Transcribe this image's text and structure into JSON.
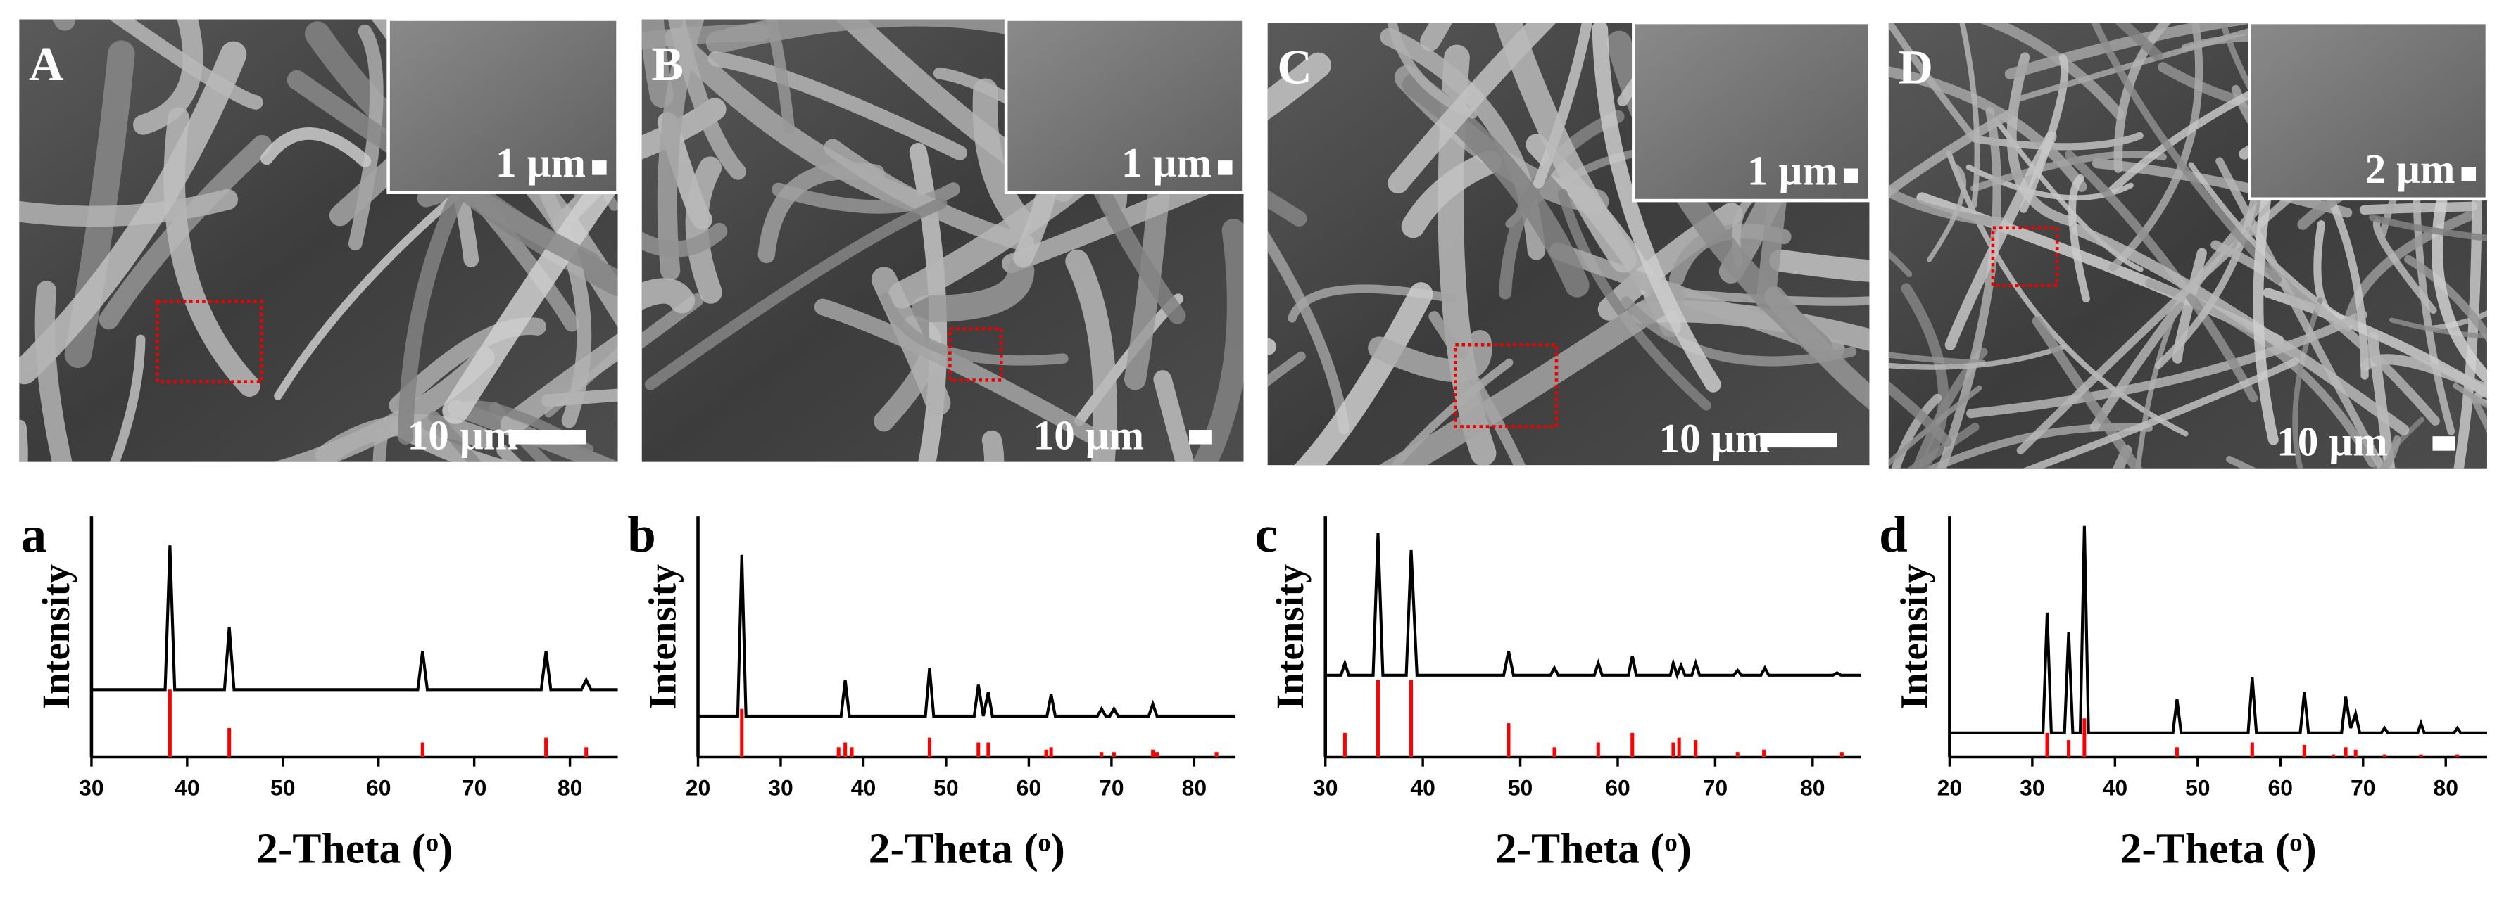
{
  "images": [
    {
      "label": "A",
      "scale": "10 µm",
      "inset_scale": "1 µm"
    },
    {
      "label": "B",
      "scale": "10 µm",
      "inset_scale": "1 µm"
    },
    {
      "label": "C",
      "scale": "10 µm",
      "inset_scale": "1 µm"
    },
    {
      "label": "D",
      "scale": "10 µm",
      "inset_scale": "2 µm"
    }
  ],
  "chart_data": [
    {
      "type": "xrd",
      "label": "a",
      "y_label": "Intensity",
      "x_label": "2-Theta (ᵒ)",
      "xlim": [
        30,
        85
      ],
      "xticks": [
        30,
        40,
        50,
        60,
        70,
        80
      ],
      "ylim": [
        0,
        100
      ],
      "series": [
        {
          "style": "line",
          "color": "#000000",
          "x": [
            30,
            37.7,
            38.2,
            38.7,
            43.9,
            44.4,
            44.9,
            64.1,
            64.6,
            65.1,
            77.0,
            77.5,
            78.0,
            81.2,
            81.7,
            82.2,
            85
          ],
          "values": [
            28,
            28,
            88,
            28,
            28,
            54,
            28,
            28,
            44,
            28,
            28,
            44,
            28,
            28,
            32,
            28,
            28
          ]
        },
        {
          "style": "stick",
          "color": "#ff0000",
          "x": [
            38.2,
            44.4,
            64.6,
            77.5,
            81.7
          ],
          "values": [
            28,
            12,
            6,
            8,
            4
          ]
        }
      ]
    },
    {
      "type": "xrd",
      "label": "b",
      "y_label": "Intensity",
      "x_label": "2-Theta (ᵒ)",
      "xlim": [
        20,
        85
      ],
      "xticks": [
        20,
        30,
        40,
        50,
        60,
        70,
        80
      ],
      "ylim": [
        0,
        100
      ],
      "series": [
        {
          "style": "line",
          "color": "#000000",
          "x": [
            20,
            24.8,
            25.3,
            25.8,
            37.3,
            37.8,
            38.3,
            47.5,
            48.0,
            48.5,
            53.4,
            53.9,
            54.5,
            55.1,
            55.6,
            62.2,
            62.7,
            63.2,
            68.3,
            68.8,
            69.3,
            69.8,
            70.3,
            70.8,
            74.5,
            75.0,
            75.5,
            85
          ],
          "values": [
            17,
            17,
            84,
            17,
            17,
            32,
            17,
            17,
            37,
            17,
            17,
            30,
            17,
            27,
            17,
            17,
            26,
            17,
            17,
            20,
            17,
            17,
            20,
            17,
            17,
            22,
            17,
            17
          ]
        },
        {
          "style": "stick",
          "color": "#ff0000",
          "x": [
            25.3,
            37.0,
            37.8,
            38.6,
            48.0,
            53.9,
            55.1,
            62.1,
            62.7,
            68.8,
            70.3,
            75.0,
            75.5,
            82.7
          ],
          "values": [
            20,
            4,
            6,
            4,
            8,
            6,
            6,
            3,
            4,
            2,
            2,
            3,
            2,
            2
          ]
        }
      ]
    },
    {
      "type": "xrd",
      "label": "c",
      "y_label": "Intensity",
      "x_label": "2-Theta (ᵒ)",
      "xlim": [
        30,
        85
      ],
      "xticks": [
        30,
        40,
        50,
        60,
        70,
        80
      ],
      "ylim": [
        0,
        100
      ],
      "series": [
        {
          "style": "line",
          "color": "#000000",
          "x": [
            30,
            31.6,
            32.0,
            32.4,
            34.9,
            35.4,
            35.9,
            38.3,
            38.8,
            39.4,
            48.3,
            48.8,
            49.3,
            53.1,
            53.5,
            53.9,
            57.6,
            58.0,
            58.4,
            61.1,
            61.5,
            61.9,
            65.4,
            65.7,
            66.1,
            66.5,
            66.9,
            67.6,
            68.0,
            68.4,
            71.9,
            72.3,
            72.7,
            74.7,
            75.1,
            75.5,
            82.1,
            82.5,
            82.9,
            85
          ],
          "values": [
            34,
            34,
            39,
            34,
            34,
            93,
            34,
            34,
            86,
            34,
            34,
            44,
            34,
            34,
            37,
            34,
            34,
            39,
            34,
            34,
            42,
            34,
            34,
            39,
            34,
            38,
            34,
            34,
            39,
            34,
            34,
            36,
            34,
            34,
            37,
            34,
            34,
            35,
            34,
            34
          ]
        },
        {
          "style": "stick",
          "color": "#ff0000",
          "x": [
            32.0,
            35.4,
            38.8,
            48.8,
            53.5,
            58.0,
            61.5,
            65.7,
            66.3,
            68.0,
            72.3,
            75.0,
            83.0
          ],
          "values": [
            10,
            32,
            32,
            14,
            4,
            6,
            10,
            6,
            8,
            7,
            2,
            3,
            2
          ]
        }
      ]
    },
    {
      "type": "xrd",
      "label": "d",
      "y_label": "Intensity",
      "x_label": "2-Theta (ᵒ)",
      "xlim": [
        20,
        85
      ],
      "xticks": [
        20,
        30,
        40,
        50,
        60,
        70,
        80
      ],
      "ylim": [
        0,
        100
      ],
      "series": [
        {
          "style": "line",
          "color": "#000000",
          "x": [
            20,
            31.3,
            31.8,
            32.3,
            33.9,
            34.4,
            34.9,
            35.8,
            36.3,
            36.8,
            47.0,
            47.5,
            48.0,
            56.1,
            56.6,
            57.1,
            62.4,
            62.9,
            63.4,
            67.4,
            67.9,
            68.5,
            69.1,
            69.6,
            72.2,
            72.6,
            73.0,
            76.6,
            77.0,
            77.4,
            81.0,
            81.4,
            81.8,
            85
          ],
          "values": [
            10,
            10,
            60,
            10,
            10,
            52,
            10,
            10,
            96,
            10,
            10,
            24,
            10,
            10,
            33,
            10,
            10,
            27,
            10,
            10,
            25,
            12,
            18,
            10,
            10,
            12,
            10,
            10,
            14,
            10,
            10,
            12,
            10,
            10
          ]
        },
        {
          "style": "stick",
          "color": "#ff0000",
          "x": [
            31.8,
            34.4,
            36.3,
            47.5,
            56.6,
            62.9,
            66.4,
            67.9,
            69.1,
            72.6,
            77.0,
            81.4
          ],
          "values": [
            10,
            7,
            16,
            4,
            6,
            5,
            1,
            4,
            3,
            1,
            1,
            1
          ]
        }
      ]
    }
  ]
}
